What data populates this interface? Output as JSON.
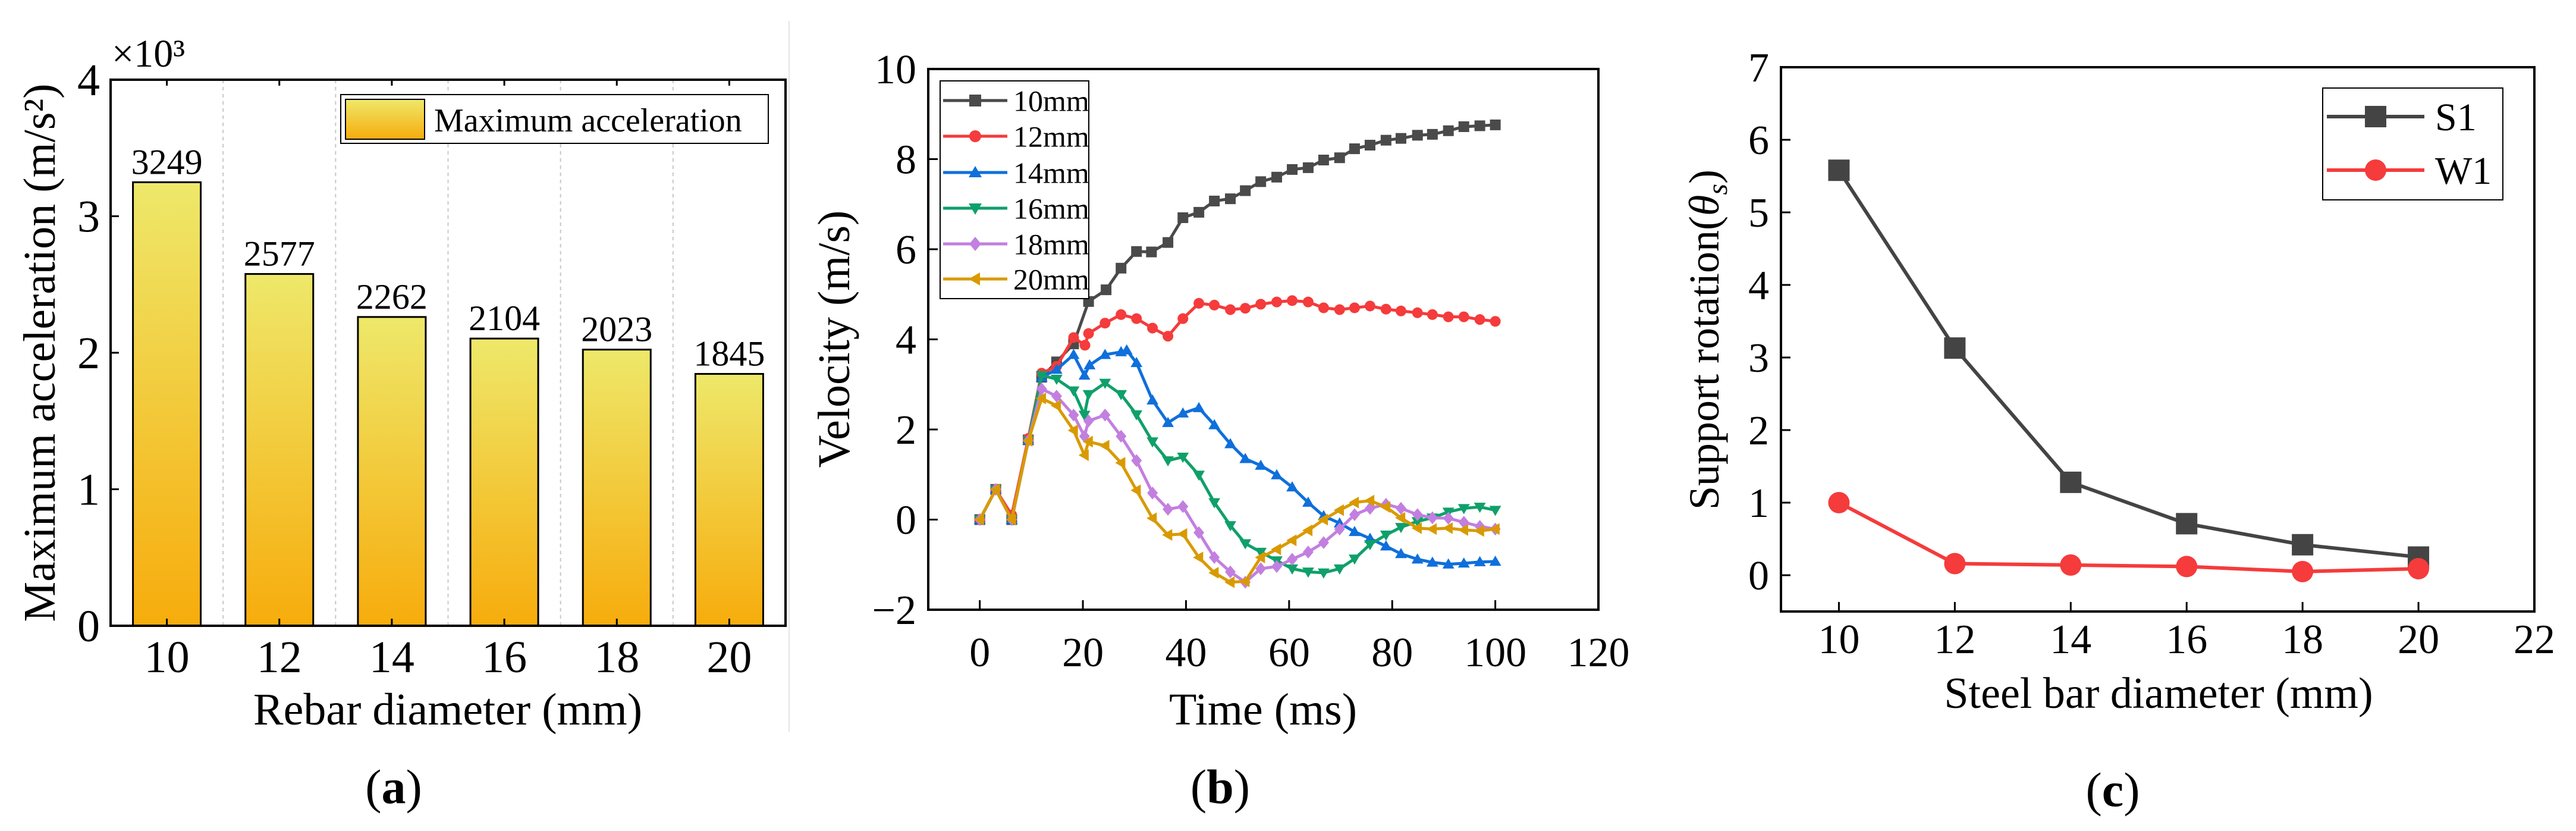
{
  "chart_data": [
    {
      "type": "bar",
      "panel_caption": "a",
      "title": "",
      "xlabel": "Rebar diameter (mm)",
      "ylabel": "Maximum acceleration (m/s²)",
      "y_multiplier": "×10³",
      "categories": [
        "10",
        "12",
        "14",
        "16",
        "18",
        "20"
      ],
      "values": [
        3249,
        2577,
        2262,
        2104,
        2023,
        1845
      ],
      "data_labels": [
        "3249",
        "2577",
        "2262",
        "2104",
        "2023",
        "1845"
      ],
      "ylim": [
        0,
        4
      ],
      "yticks": [
        "0",
        "1",
        "2",
        "3",
        "4"
      ],
      "legend": [
        "Maximum acceleration"
      ],
      "legend_position": "top-right",
      "colors": {
        "bar_top": "#EEE86A",
        "bar_bottom": "#F7AC0C"
      }
    },
    {
      "type": "line",
      "panel_caption": "b",
      "xlabel": "Time (ms)",
      "ylabel": "Velocity (m/s)",
      "xlim": [
        -10,
        120
      ],
      "ylim": [
        -2,
        10
      ],
      "xticks": [
        "0",
        "20",
        "40",
        "60",
        "80",
        "100",
        "120"
      ],
      "yticks": [
        "−2",
        "0",
        "2",
        "4",
        "6",
        "8",
        "10"
      ],
      "legend_position": "top-left",
      "series": [
        {
          "name": "10mm",
          "color": "#4A4A4A",
          "marker": "square",
          "x": [
            0,
            3.1,
            6.2,
            9.4,
            12,
            14.9,
            18.2,
            21.1,
            24.5,
            27.4,
            30.4,
            33.3,
            36.5,
            39.4,
            42.5,
            45.5,
            48.6,
            51.5,
            54.5,
            57.6,
            60.6,
            63.7,
            66.7,
            69.8,
            72.7,
            75.7,
            78.8,
            81.7,
            84.9,
            87.8,
            90.9,
            93.9,
            97,
            100
          ],
          "y": [
            0,
            0.67,
            0,
            1.77,
            3.16,
            3.5,
            3.9,
            4.84,
            5.1,
            5.58,
            5.95,
            5.94,
            6.15,
            6.7,
            6.82,
            7.07,
            7.12,
            7.3,
            7.5,
            7.6,
            7.77,
            7.81,
            7.98,
            8.03,
            8.23,
            8.31,
            8.42,
            8.46,
            8.53,
            8.55,
            8.63,
            8.72,
            8.74,
            8.76
          ]
        },
        {
          "name": "12mm",
          "color": "#F53B3B",
          "marker": "circle",
          "x": [
            0,
            3.1,
            6.2,
            9.4,
            12,
            14.9,
            18.2,
            20.4,
            21.1,
            24.3,
            27.4,
            30.4,
            33.5,
            36.5,
            39.4,
            42.5,
            45.5,
            48.6,
            51.5,
            54.5,
            57.6,
            60.6,
            63.7,
            66.7,
            69.8,
            72.7,
            75.7,
            78.8,
            81.7,
            84.9,
            87.8,
            90.9,
            93.9,
            97,
            100
          ],
          "y": [
            0,
            0.67,
            0.1,
            1.8,
            3.25,
            3.4,
            4.04,
            3.87,
            4.13,
            4.36,
            4.55,
            4.46,
            4.25,
            4.07,
            4.46,
            4.8,
            4.76,
            4.66,
            4.69,
            4.78,
            4.83,
            4.86,
            4.83,
            4.7,
            4.66,
            4.7,
            4.74,
            4.67,
            4.63,
            4.59,
            4.55,
            4.5,
            4.5,
            4.44,
            4.4
          ]
        },
        {
          "name": "14mm",
          "color": "#0F6FDB",
          "marker": "triangle-up",
          "x": [
            0,
            3.1,
            6.2,
            9.4,
            12,
            14.9,
            18.2,
            20.3,
            21.3,
            24.3,
            27.4,
            28.5,
            30.4,
            33.5,
            36.5,
            39.4,
            42.5,
            45.5,
            48.6,
            51.5,
            54.5,
            57.6,
            60.6,
            63.7,
            66.7,
            69.8,
            72.7,
            75.7,
            78.8,
            81.7,
            84.9,
            87.8,
            90.9,
            93.9,
            97,
            100
          ],
          "y": [
            0,
            0.67,
            0,
            1.75,
            3.16,
            3.33,
            3.66,
            3.2,
            3.43,
            3.66,
            3.72,
            3.76,
            3.48,
            2.65,
            2.15,
            2.36,
            2.48,
            2.1,
            1.68,
            1.35,
            1.2,
            0.99,
            0.72,
            0.38,
            0.08,
            -0.08,
            -0.27,
            -0.42,
            -0.59,
            -0.76,
            -0.88,
            -0.95,
            -0.99,
            -0.97,
            -0.94,
            -0.93
          ]
        },
        {
          "name": "16mm",
          "color": "#0FA06A",
          "marker": "triangle-down",
          "x": [
            0,
            3.1,
            6.2,
            9.4,
            12,
            14.9,
            18.2,
            20.3,
            21.1,
            24.3,
            27.4,
            30.4,
            33.5,
            36.5,
            39.4,
            42.5,
            45.5,
            48.6,
            51.5,
            54.5,
            57.6,
            60.6,
            63.7,
            66.7,
            69.8,
            72.7,
            75.7,
            78.8,
            81.7,
            84.9,
            87.8,
            90.9,
            93.9,
            97,
            100
          ],
          "y": [
            0,
            0.67,
            0,
            1.75,
            3.2,
            3.12,
            2.86,
            2.32,
            2.78,
            3.03,
            2.78,
            2.33,
            1.73,
            1.31,
            1.39,
            0.99,
            0.38,
            -0.13,
            -0.53,
            -0.72,
            -0.91,
            -1.09,
            -1.16,
            -1.18,
            -1.09,
            -0.87,
            -0.55,
            -0.34,
            -0.17,
            -0.04,
            0.04,
            0.17,
            0.25,
            0.28,
            0.21
          ]
        },
        {
          "name": "18mm",
          "color": "#C27FE0",
          "marker": "diamond",
          "x": [
            0,
            3.1,
            6.2,
            9.4,
            12,
            14.9,
            18.2,
            20.3,
            21.1,
            24.3,
            27.4,
            30.4,
            33.5,
            36.5,
            39.4,
            42.5,
            45.5,
            48.6,
            51.5,
            54.5,
            57.6,
            60.6,
            63.7,
            66.7,
            69.8,
            72.7,
            75.7,
            78.8,
            81.7,
            84.9,
            87.8,
            90.9,
            93.9,
            97,
            100
          ],
          "y": [
            0,
            0.67,
            0,
            1.75,
            2.9,
            2.74,
            2.32,
            1.85,
            2.19,
            2.32,
            1.85,
            1.31,
            0.59,
            0.23,
            0.29,
            -0.29,
            -0.84,
            -1.16,
            -1.39,
            -1.09,
            -1.04,
            -0.88,
            -0.72,
            -0.51,
            -0.21,
            0.11,
            0.25,
            0.34,
            0.25,
            0.11,
            0.04,
            0.03,
            -0.06,
            -0.15,
            -0.21
          ]
        },
        {
          "name": "20mm",
          "color": "#D99A00",
          "marker": "triangle-left",
          "x": [
            0,
            3.1,
            6.2,
            9.4,
            12,
            14.9,
            18.2,
            20.3,
            21.1,
            24.3,
            27.4,
            30.4,
            33.5,
            36.5,
            39.4,
            42.5,
            45.5,
            48.6,
            51.5,
            54.5,
            57.6,
            60.6,
            63.7,
            66.7,
            69.8,
            72.7,
            75.7,
            78.8,
            81.7,
            84.9,
            87.8,
            90.9,
            93.9,
            97,
            100
          ],
          "y": [
            0,
            0.67,
            0,
            1.75,
            2.69,
            2.53,
            1.98,
            1.43,
            1.73,
            1.64,
            1.26,
            0.65,
            0.03,
            -0.34,
            -0.32,
            -0.84,
            -1.18,
            -1.39,
            -1.37,
            -0.84,
            -0.66,
            -0.46,
            -0.24,
            0,
            0.21,
            0.38,
            0.42,
            0.28,
            0.04,
            -0.19,
            -0.21,
            -0.19,
            -0.23,
            -0.25,
            -0.21
          ]
        }
      ]
    },
    {
      "type": "line",
      "panel_caption": "c",
      "xlabel": "Steel bar diameter (mm)",
      "ylabel": "Support rotation(θs)",
      "ylabel_parts": {
        "main": "Support rotation(",
        "symbol": "θ",
        "sub": "s",
        "end": ")"
      },
      "xlim": [
        9,
        22
      ],
      "ylim": [
        -0.5,
        7
      ],
      "xticks": [
        "10",
        "12",
        "14",
        "16",
        "18",
        "20",
        "22"
      ],
      "yticks": [
        "0",
        "1",
        "2",
        "3",
        "4",
        "5",
        "6",
        "7"
      ],
      "legend_position": "top-right",
      "series": [
        {
          "name": "S1",
          "color": "#444444",
          "marker": "square",
          "x": [
            10,
            12,
            14,
            16,
            18,
            20
          ],
          "y": [
            5.58,
            3.13,
            1.28,
            0.71,
            0.42,
            0.25
          ]
        },
        {
          "name": "W1",
          "color": "#F53B3B",
          "marker": "circle",
          "x": [
            10,
            12,
            14,
            16,
            18,
            20
          ],
          "y": [
            1.0,
            0.16,
            0.14,
            0.12,
            0.05,
            0.09
          ]
        }
      ]
    }
  ]
}
